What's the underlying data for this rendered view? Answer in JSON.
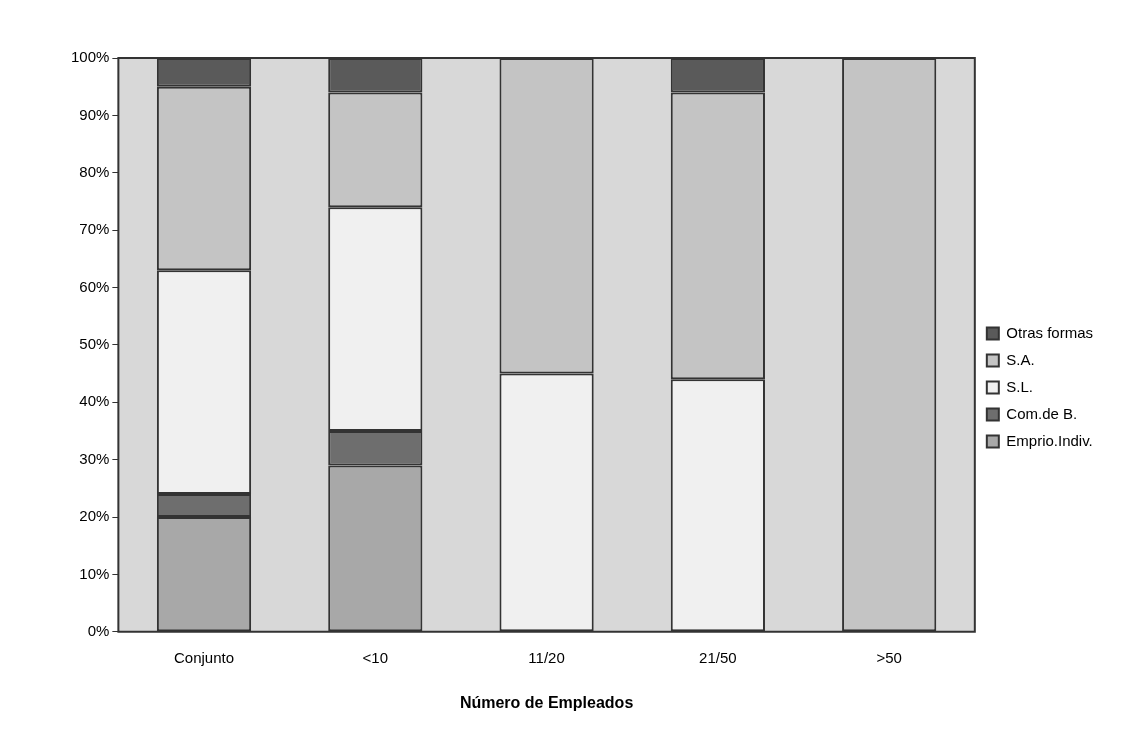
{
  "chart_data": {
    "type": "bar",
    "stacked": true,
    "xlabel": "Número de Empleados",
    "categories": [
      "Conjunto",
      "<10",
      "11/20",
      "21/50",
      ">50"
    ],
    "series": [
      {
        "name": "Emprio.Indiv.",
        "color": "#a8a8a8",
        "values": [
          20,
          29,
          0,
          0,
          0
        ]
      },
      {
        "name": "Com.de B.",
        "color": "#6e6e6e",
        "values": [
          4,
          6,
          0,
          0,
          0
        ]
      },
      {
        "name": "S.L.",
        "color": "#f0f0f0",
        "values": [
          39,
          39,
          45,
          44,
          0
        ]
      },
      {
        "name": "S.A.",
        "color": "#c4c4c4",
        "values": [
          32,
          20,
          55,
          50,
          100
        ]
      },
      {
        "name": "Otras formas",
        "color": "#5a5a5a",
        "values": [
          5,
          6,
          0,
          6,
          0
        ]
      }
    ],
    "ylim": [
      0,
      100
    ],
    "yticks": [
      {
        "value": 0,
        "label": "0%"
      },
      {
        "value": 10,
        "label": "10%"
      },
      {
        "value": 20,
        "label": "20%"
      },
      {
        "value": 30,
        "label": "30%"
      },
      {
        "value": 40,
        "label": "40%"
      },
      {
        "value": 50,
        "label": "50%"
      },
      {
        "value": 60,
        "label": "60%"
      },
      {
        "value": 70,
        "label": "70%"
      },
      {
        "value": 80,
        "label": "80%"
      },
      {
        "value": 90,
        "label": "90%"
      },
      {
        "value": 100,
        "label": "100%"
      }
    ],
    "grid": false,
    "legend": "right"
  }
}
